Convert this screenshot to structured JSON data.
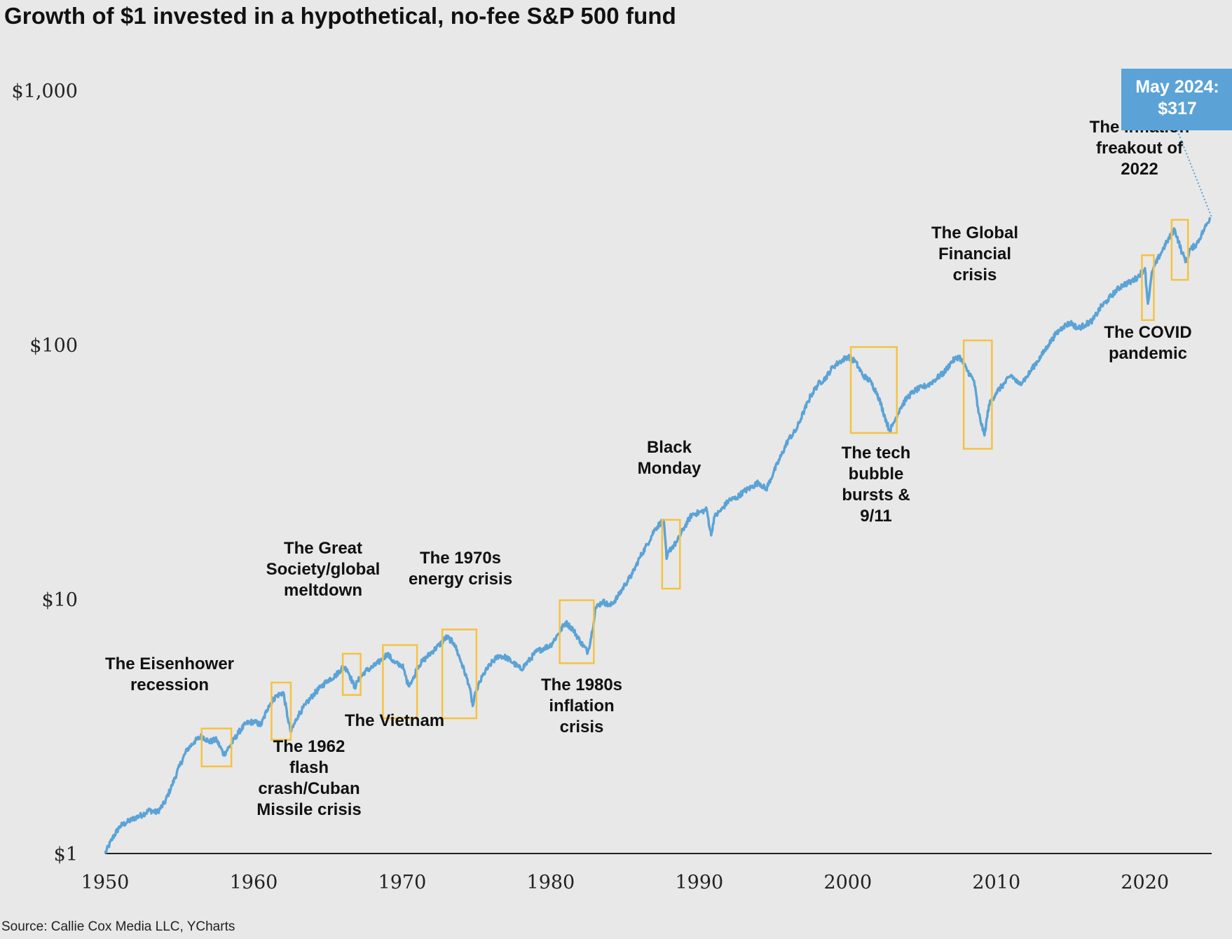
{
  "title": "Growth of $1 invested in a hypothetical, no-fee S&P 500 fund",
  "source": "Source: Callie Cox Media LLC, YCharts",
  "colors": {
    "background": "#e8e8e8",
    "line": "#5ba3d6",
    "highlight_box": "#f5c242",
    "callout_bg": "#5ba3d6",
    "axis": "#222222"
  },
  "chart_data": {
    "type": "line",
    "title": "Growth of $1 invested in a hypothetical, no-fee S&P 500 fund",
    "xlabel": "",
    "ylabel": "",
    "y_scale": "log",
    "ylim": [
      1,
      1000
    ],
    "xlim": [
      1950,
      2024.5
    ],
    "y_ticks": [
      {
        "value": 1,
        "label": "$1"
      },
      {
        "value": 10,
        "label": "$10"
      },
      {
        "value": 100,
        "label": "$100"
      },
      {
        "value": 1000,
        "label": "$1,000"
      }
    ],
    "x_ticks": [
      {
        "value": 1950,
        "label": "1950"
      },
      {
        "value": 1960,
        "label": "1960"
      },
      {
        "value": 1970,
        "label": "1970"
      },
      {
        "value": 1980,
        "label": "1980"
      },
      {
        "value": 1990,
        "label": "1990"
      },
      {
        "value": 2000,
        "label": "2000"
      },
      {
        "value": 2010,
        "label": "2010"
      },
      {
        "value": 2020,
        "label": "2020"
      }
    ],
    "grid": false,
    "legend": "none",
    "series": [
      {
        "x": [
          1950.0,
          1950.5,
          1951.0,
          1951.5,
          1952.0,
          1952.5,
          1953.0,
          1953.5,
          1954.0,
          1954.5,
          1955.0,
          1955.5,
          1956.0,
          1956.5,
          1957.0,
          1957.5,
          1958.0,
          1958.5,
          1959.0,
          1959.5,
          1960.0,
          1960.5,
          1961.0,
          1961.5,
          1962.0,
          1962.3,
          1962.5,
          1963.0,
          1963.5,
          1964.0,
          1964.5,
          1965.0,
          1965.5,
          1966.0,
          1966.3,
          1966.8,
          1967.0,
          1967.5,
          1968.0,
          1968.5,
          1969.0,
          1969.5,
          1970.0,
          1970.4,
          1970.8,
          1971.0,
          1971.5,
          1972.0,
          1972.5,
          1973.0,
          1973.5,
          1974.0,
          1974.5,
          1974.75,
          1975.0,
          1975.5,
          1976.0,
          1976.5,
          1977.0,
          1977.5,
          1978.0,
          1978.5,
          1979.0,
          1979.5,
          1980.0,
          1980.5,
          1981.0,
          1981.5,
          1982.0,
          1982.5,
          1982.8,
          1983.0,
          1983.5,
          1984.0,
          1984.5,
          1985.0,
          1985.5,
          1986.0,
          1986.5,
          1987.0,
          1987.6,
          1987.8,
          1988.0,
          1988.5,
          1989.0,
          1989.5,
          1990.0,
          1990.5,
          1990.8,
          1991.0,
          1991.5,
          1992.0,
          1992.5,
          1993.0,
          1993.5,
          1994.0,
          1994.5,
          1995.0,
          1995.5,
          1996.0,
          1996.5,
          1997.0,
          1997.5,
          1998.0,
          1998.5,
          1999.0,
          1999.5,
          2000.0,
          2000.5,
          2001.0,
          2001.5,
          2002.0,
          2002.5,
          2002.8,
          2003.0,
          2003.5,
          2004.0,
          2004.5,
          2005.0,
          2005.5,
          2006.0,
          2006.5,
          2007.0,
          2007.5,
          2008.0,
          2008.5,
          2008.8,
          2009.2,
          2009.5,
          2010.0,
          2010.5,
          2011.0,
          2011.5,
          2012.0,
          2012.5,
          2013.0,
          2013.5,
          2014.0,
          2014.5,
          2015.0,
          2015.5,
          2016.0,
          2016.5,
          2017.0,
          2017.5,
          2018.0,
          2018.5,
          2019.0,
          2019.5,
          2020.0,
          2020.2,
          2020.5,
          2021.0,
          2021.5,
          2022.0,
          2022.5,
          2022.8,
          2023.0,
          2023.5,
          2024.0,
          2024.4
        ],
        "y": [
          1.0,
          1.15,
          1.28,
          1.33,
          1.38,
          1.42,
          1.48,
          1.45,
          1.58,
          1.85,
          2.2,
          2.55,
          2.75,
          2.9,
          2.75,
          2.8,
          2.45,
          2.7,
          3.0,
          3.25,
          3.3,
          3.2,
          3.8,
          4.15,
          4.3,
          3.4,
          3.0,
          3.5,
          3.85,
          4.2,
          4.5,
          4.8,
          5.0,
          5.4,
          5.3,
          4.5,
          4.75,
          5.2,
          5.4,
          5.7,
          6.1,
          5.6,
          5.5,
          4.6,
          4.9,
          5.4,
          5.8,
          6.2,
          6.6,
          7.1,
          6.7,
          5.6,
          4.6,
          3.8,
          4.4,
          5.1,
          5.6,
          6.0,
          5.9,
          5.6,
          5.3,
          5.7,
          6.2,
          6.4,
          6.6,
          7.3,
          8.1,
          7.6,
          6.8,
          6.2,
          7.5,
          9.2,
          9.8,
          9.4,
          10.2,
          11.4,
          12.6,
          14.6,
          16.4,
          18.8,
          20.5,
          14.4,
          15.6,
          16.8,
          19.2,
          21.5,
          21.9,
          22.5,
          17.8,
          21.0,
          22.5,
          24.5,
          25.0,
          26.5,
          27.5,
          28.8,
          27.0,
          31.5,
          36.5,
          42.5,
          46.0,
          54.0,
          63.0,
          70.0,
          74.0,
          82.0,
          86.0,
          90.0,
          86.0,
          76.0,
          72.0,
          64.0,
          52.0,
          46.0,
          48.0,
          56.0,
          62.0,
          66.0,
          68.0,
          70.0,
          74.0,
          78.0,
          86.0,
          90.0,
          80.0,
          72.0,
          54.0,
          44.0,
          58.0,
          65.0,
          70.0,
          76.0,
          70.0,
          74.0,
          82.0,
          90.0,
          100.0,
          110.0,
          118.0,
          122.0,
          116.0,
          120.0,
          125.0,
          140.0,
          150.0,
          162.0,
          172.0,
          176.0,
          184.0,
          200.0,
          145.0,
          195.0,
          225.0,
          255.0,
          285.0,
          230.0,
          212.0,
          235.0,
          250.0,
          285.0,
          317.0
        ]
      }
    ],
    "annotations": [
      {
        "lines": [
          "The Eisenhower",
          "recession"
        ],
        "x_range": [
          1956.5,
          1958.5
        ],
        "y_range": [
          2.2,
          3.1
        ]
      },
      {
        "lines": [
          "The 1962",
          "flash",
          "crash/Cuban",
          "Missile crisis"
        ],
        "x_range": [
          1961.2,
          1962.5
        ],
        "y_range": [
          2.8,
          4.7
        ]
      },
      {
        "lines": [
          "The Great",
          "Society/global",
          "meltdown"
        ],
        "x_range": [
          1966.0,
          1967.2
        ],
        "y_range": [
          4.2,
          6.1
        ]
      },
      {
        "lines": [
          "The Vietnam"
        ],
        "x_range": [
          1968.7,
          1971.0
        ],
        "y_range": [
          3.4,
          6.6
        ]
      },
      {
        "lines": [
          "The 1970s",
          "energy crisis"
        ],
        "x_range": [
          1972.7,
          1975.0
        ],
        "y_range": [
          3.4,
          7.6
        ]
      },
      {
        "lines": [
          "The 1980s",
          "inflation",
          "crisis"
        ],
        "x_range": [
          1980.6,
          1982.9
        ],
        "y_range": [
          5.6,
          9.9
        ]
      },
      {
        "lines": [
          "Black",
          "Monday"
        ],
        "x_range": [
          1987.5,
          1988.7
        ],
        "y_range": [
          11.0,
          20.5
        ]
      },
      {
        "lines": [
          "The tech",
          "bubble",
          "bursts &",
          "9/11"
        ],
        "x_range": [
          2000.2,
          2003.3
        ],
        "y_range": [
          45.0,
          98.0
        ]
      },
      {
        "lines": [
          "The Global",
          "Financial",
          "crisis"
        ],
        "x_range": [
          2007.8,
          2009.7
        ],
        "y_range": [
          39.0,
          104.0
        ]
      },
      {
        "lines": [
          "The COVID",
          "pandemic"
        ],
        "x_range": [
          2019.8,
          2020.6
        ],
        "y_range": [
          125.0,
          225.0
        ]
      },
      {
        "lines": [
          "The inflation",
          "freakout of",
          "2022"
        ],
        "x_range": [
          2021.8,
          2022.9
        ],
        "y_range": [
          180.0,
          310.0
        ]
      }
    ],
    "callout": {
      "lines": [
        "May 2024:",
        "$317"
      ],
      "x": 2024.4,
      "y": 317
    }
  }
}
